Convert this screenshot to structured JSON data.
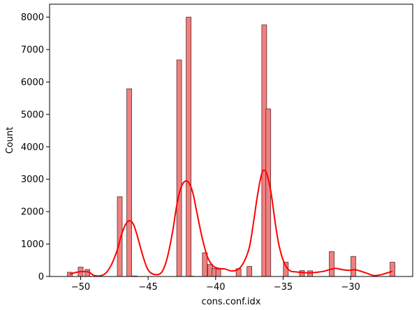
{
  "chart_data": {
    "type": "bar",
    "title": "",
    "xlabel": "cons.conf.idx",
    "ylabel": "Count",
    "xlim": [
      -52.3,
      -25.4
    ],
    "ylim": [
      0,
      8400
    ],
    "x_ticks": [
      -50,
      -45,
      -40,
      -35,
      -30
    ],
    "x_tick_labels": [
      "−50",
      "−45",
      "−40",
      "−35",
      "−30"
    ],
    "y_ticks": [
      0,
      1000,
      2000,
      3000,
      4000,
      5000,
      6000,
      7000,
      8000
    ],
    "y_tick_labels": [
      "0",
      "1000",
      "2000",
      "3000",
      "4000",
      "5000",
      "6000",
      "7000",
      "8000"
    ],
    "bin_width": 0.36,
    "bins": [
      {
        "x": -50.8,
        "count": 130
      },
      {
        "x": -50.0,
        "count": 290
      },
      {
        "x": -49.5,
        "count": 215
      },
      {
        "x": -47.1,
        "count": 2460
      },
      {
        "x": -46.4,
        "count": 5790
      },
      {
        "x": -46.0,
        "count": 15
      },
      {
        "x": -42.7,
        "count": 6680
      },
      {
        "x": -42.0,
        "count": 8000
      },
      {
        "x": -41.8,
        "count": 10
      },
      {
        "x": -40.8,
        "count": 730
      },
      {
        "x": -40.4,
        "count": 370
      },
      {
        "x": -40.1,
        "count": 250
      },
      {
        "x": -39.8,
        "count": 230
      },
      {
        "x": -38.3,
        "count": 240
      },
      {
        "x": -37.5,
        "count": 310
      },
      {
        "x": -36.4,
        "count": 7760
      },
      {
        "x": -36.1,
        "count": 5170
      },
      {
        "x": -34.8,
        "count": 440
      },
      {
        "x": -33.6,
        "count": 180
      },
      {
        "x": -33.0,
        "count": 175
      },
      {
        "x": -31.4,
        "count": 770
      },
      {
        "x": -29.8,
        "count": 620
      },
      {
        "x": -26.9,
        "count": 440
      }
    ],
    "kde": {
      "x": [
        -50.8,
        -50.3,
        -49.9,
        -49.4,
        -49.0,
        -48.5,
        -48.1,
        -47.7,
        -47.3,
        -47.0,
        -46.7,
        -46.4,
        -46.1,
        -45.8,
        -45.4,
        -45.0,
        -44.5,
        -44.0,
        -43.6,
        -43.2,
        -42.9,
        -42.6,
        -42.3,
        -42.0,
        -41.7,
        -41.4,
        -41.0,
        -40.6,
        -40.2,
        -39.8,
        -39.3,
        -38.8,
        -38.3,
        -37.9,
        -37.5,
        -37.2,
        -36.9,
        -36.6,
        -36.4,
        -36.2,
        -35.9,
        -35.6,
        -35.3,
        -34.9,
        -34.5,
        -34.0,
        -33.5,
        -33.0,
        -32.5,
        -32.0,
        -31.5,
        -31.1,
        -30.6,
        -30.1,
        -29.7,
        -29.3,
        -28.8,
        -28.3,
        -27.8,
        -27.3,
        -26.9
      ],
      "y": [
        70,
        130,
        150,
        135,
        30,
        25,
        120,
        380,
        800,
        1250,
        1580,
        1720,
        1620,
        1250,
        650,
        200,
        60,
        130,
        550,
        1350,
        2150,
        2700,
        2930,
        2900,
        2600,
        2000,
        1200,
        600,
        330,
        250,
        230,
        170,
        230,
        450,
        900,
        1650,
        2500,
        3150,
        3280,
        3150,
        2600,
        1700,
        950,
        400,
        180,
        140,
        120,
        110,
        130,
        160,
        220,
        250,
        210,
        190,
        210,
        170,
        100,
        30,
        50,
        110,
        160
      ]
    },
    "bar_color": "#f08080",
    "bar_edge_color": "#5a2a2a",
    "kde_color": "#ff0000",
    "grid": false,
    "legend": "none"
  }
}
